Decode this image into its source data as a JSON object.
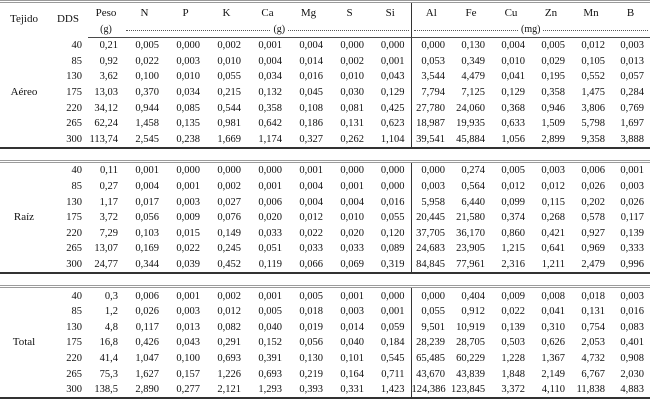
{
  "table": {
    "headers": {
      "tejido": "Tejido",
      "dds": "DDS",
      "peso": "Peso",
      "peso_unit": "(g)",
      "g_cols": [
        "N",
        "P",
        "K",
        "Ca",
        "Mg",
        "S",
        "Si"
      ],
      "g_unit": "(g)",
      "mg_cols": [
        "Al",
        "Fe",
        "Cu",
        "Zn",
        "Mn",
        "B"
      ],
      "mg_unit": "(mg)"
    },
    "rules": {
      "section_top_color": "#9b9b9b",
      "section_bottom_color": "#333333",
      "divider_color": "#333333"
    },
    "sections": [
      {
        "tejido": "Aéreo",
        "rows": [
          {
            "dds": "40",
            "peso": "0,21",
            "g": [
              "0,005",
              "0,000",
              "0,002",
              "0,001",
              "0,004",
              "0,000",
              "0,000"
            ],
            "mg": [
              "0,000",
              "0,130",
              "0,004",
              "0,005",
              "0,012",
              "0,003"
            ]
          },
          {
            "dds": "85",
            "peso": "0,92",
            "g": [
              "0,022",
              "0,003",
              "0,010",
              "0,004",
              "0,014",
              "0,002",
              "0,001"
            ],
            "mg": [
              "0,053",
              "0,349",
              "0,010",
              "0,029",
              "0,105",
              "0,013"
            ]
          },
          {
            "dds": "130",
            "peso": "3,62",
            "g": [
              "0,100",
              "0,010",
              "0,055",
              "0,034",
              "0,016",
              "0,010",
              "0,043"
            ],
            "mg": [
              "3,544",
              "4,479",
              "0,041",
              "0,195",
              "0,552",
              "0,057"
            ]
          },
          {
            "dds": "175",
            "peso": "13,03",
            "g": [
              "0,370",
              "0,034",
              "0,215",
              "0,132",
              "0,045",
              "0,030",
              "0,129"
            ],
            "mg": [
              "7,794",
              "7,125",
              "0,129",
              "0,358",
              "1,475",
              "0,284"
            ]
          },
          {
            "dds": "220",
            "peso": "34,12",
            "g": [
              "0,944",
              "0,085",
              "0,544",
              "0,358",
              "0,108",
              "0,081",
              "0,425"
            ],
            "mg": [
              "27,780",
              "24,060",
              "0,368",
              "0,946",
              "3,806",
              "0,769"
            ]
          },
          {
            "dds": "265",
            "peso": "62,24",
            "g": [
              "1,458",
              "0,135",
              "0,981",
              "0,642",
              "0,186",
              "0,131",
              "0,623"
            ],
            "mg": [
              "18,987",
              "19,935",
              "0,633",
              "1,509",
              "5,798",
              "1,697"
            ]
          },
          {
            "dds": "300",
            "peso": "113,74",
            "g": [
              "2,545",
              "0,238",
              "1,669",
              "1,174",
              "0,327",
              "0,262",
              "1,104"
            ],
            "mg": [
              "39,541",
              "45,884",
              "1,056",
              "2,899",
              "9,358",
              "3,888"
            ]
          }
        ]
      },
      {
        "tejido": "Raíz",
        "rows": [
          {
            "dds": "40",
            "peso": "0,11",
            "g": [
              "0,001",
              "0,000",
              "0,000",
              "0,000",
              "0,001",
              "0,000",
              "0,000"
            ],
            "mg": [
              "0,000",
              "0,274",
              "0,005",
              "0,003",
              "0,006",
              "0,001"
            ]
          },
          {
            "dds": "85",
            "peso": "0,27",
            "g": [
              "0,004",
              "0,001",
              "0,002",
              "0,001",
              "0,004",
              "0,001",
              "0,000"
            ],
            "mg": [
              "0,003",
              "0,564",
              "0,012",
              "0,012",
              "0,026",
              "0,003"
            ]
          },
          {
            "dds": "130",
            "peso": "1,17",
            "g": [
              "0,017",
              "0,003",
              "0,027",
              "0,006",
              "0,004",
              "0,004",
              "0,016"
            ],
            "mg": [
              "5,958",
              "6,440",
              "0,099",
              "0,115",
              "0,202",
              "0,026"
            ]
          },
          {
            "dds": "175",
            "peso": "3,72",
            "g": [
              "0,056",
              "0,009",
              "0,076",
              "0,020",
              "0,012",
              "0,010",
              "0,055"
            ],
            "mg": [
              "20,445",
              "21,580",
              "0,374",
              "0,268",
              "0,578",
              "0,117"
            ]
          },
          {
            "dds": "220",
            "peso": "7,29",
            "g": [
              "0,103",
              "0,015",
              "0,149",
              "0,033",
              "0,022",
              "0,020",
              "0,120"
            ],
            "mg": [
              "37,705",
              "36,170",
              "0,860",
              "0,421",
              "0,927",
              "0,139"
            ]
          },
          {
            "dds": "265",
            "peso": "13,07",
            "g": [
              "0,169",
              "0,022",
              "0,245",
              "0,051",
              "0,033",
              "0,033",
              "0,089"
            ],
            "mg": [
              "24,683",
              "23,905",
              "1,215",
              "0,641",
              "0,969",
              "0,333"
            ]
          },
          {
            "dds": "300",
            "peso": "24,77",
            "g": [
              "0,344",
              "0,039",
              "0,452",
              "0,119",
              "0,066",
              "0,069",
              "0,319"
            ],
            "mg": [
              "84,845",
              "77,961",
              "2,316",
              "1,211",
              "2,479",
              "0,996"
            ]
          }
        ]
      },
      {
        "tejido": "Total",
        "rows": [
          {
            "dds": "40",
            "peso": "0,3",
            "g": [
              "0,006",
              "0,001",
              "0,002",
              "0,001",
              "0,005",
              "0,001",
              "0,000"
            ],
            "mg": [
              "0,000",
              "0,404",
              "0,009",
              "0,008",
              "0,018",
              "0,003"
            ]
          },
          {
            "dds": "85",
            "peso": "1,2",
            "g": [
              "0,026",
              "0,003",
              "0,012",
              "0,005",
              "0,018",
              "0,003",
              "0,001"
            ],
            "mg": [
              "0,055",
              "0,912",
              "0,022",
              "0,041",
              "0,131",
              "0,016"
            ]
          },
          {
            "dds": "130",
            "peso": "4,8",
            "g": [
              "0,117",
              "0,013",
              "0,082",
              "0,040",
              "0,019",
              "0,014",
              "0,059"
            ],
            "mg": [
              "9,501",
              "10,919",
              "0,139",
              "0,310",
              "0,754",
              "0,083"
            ]
          },
          {
            "dds": "175",
            "peso": "16,8",
            "g": [
              "0,426",
              "0,043",
              "0,291",
              "0,152",
              "0,056",
              "0,040",
              "0,184"
            ],
            "mg": [
              "28,239",
              "28,705",
              "0,503",
              "0,626",
              "2,053",
              "0,401"
            ]
          },
          {
            "dds": "220",
            "peso": "41,4",
            "g": [
              "1,047",
              "0,100",
              "0,693",
              "0,391",
              "0,130",
              "0,101",
              "0,545"
            ],
            "mg": [
              "65,485",
              "60,229",
              "1,228",
              "1,367",
              "4,732",
              "0,908"
            ]
          },
          {
            "dds": "265",
            "peso": "75,3",
            "g": [
              "1,627",
              "0,157",
              "1,226",
              "0,693",
              "0,219",
              "0,164",
              "0,711"
            ],
            "mg": [
              "43,670",
              "43,839",
              "1,848",
              "2,149",
              "6,767",
              "2,030"
            ]
          },
          {
            "dds": "300",
            "peso": "138,5",
            "g": [
              "2,890",
              "0,277",
              "2,121",
              "1,293",
              "0,393",
              "0,331",
              "1,423"
            ],
            "mg": [
              "124,386",
              "123,845",
              "3,372",
              "4,110",
              "11,838",
              "4,883"
            ]
          }
        ]
      }
    ]
  }
}
